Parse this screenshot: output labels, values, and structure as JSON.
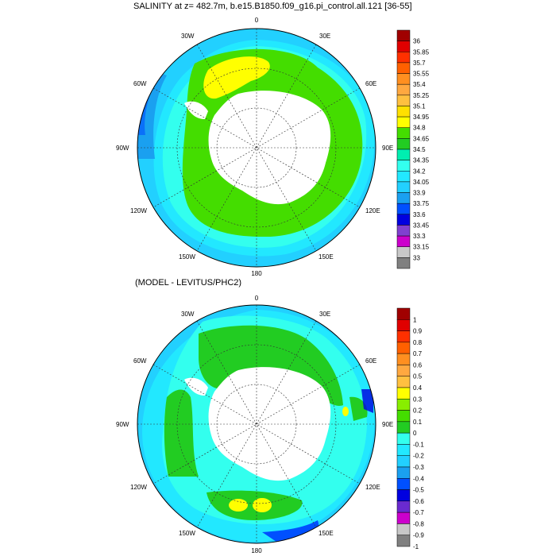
{
  "panels": [
    {
      "title": "SALINITY at z= 482.7m, b.e15.B1850.f09_g16.pi_control.all.121 [36-55]",
      "lon_labels": [
        "0",
        "30E",
        "60E",
        "90E",
        "120E",
        "150E",
        "180",
        "150W",
        "120W",
        "90W",
        "60W",
        "30W"
      ],
      "colorbar": {
        "labels": [
          "36",
          "35.85",
          "35.7",
          "35.55",
          "35.4",
          "35.25",
          "35.1",
          "34.95",
          "34.8",
          "34.65",
          "34.5",
          "34.35",
          "34.2",
          "34.05",
          "33.9",
          "33.75",
          "33.6",
          "33.45",
          "33.3",
          "33.15",
          "33"
        ],
        "colors": [
          "#a00000",
          "#e00000",
          "#ff3000",
          "#ff6000",
          "#ff8f20",
          "#ffa840",
          "#ffc040",
          "#ffe000",
          "#ffff00",
          "#44dd00",
          "#22cc22",
          "#00eeb0",
          "#33ffee",
          "#22e8ff",
          "#22d0ff",
          "#1aa0f0",
          "#0050ff",
          "#0000e0",
          "#8040d0",
          "#cc00cc",
          "#c8c8c8",
          "#808080"
        ]
      }
    },
    {
      "title": "(MODEL - LEVITUS/PHC2)",
      "lon_labels": [
        "0",
        "30E",
        "60E",
        "90E",
        "120E",
        "150E",
        "180",
        "150W",
        "120W",
        "90W",
        "60W",
        "30W"
      ],
      "colorbar": {
        "labels": [
          "1",
          "0.9",
          "0.8",
          "0.7",
          "0.6",
          "0.5",
          "0.4",
          "0.3",
          "0.2",
          "0.1",
          "0",
          "-0.1",
          "-0.2",
          "-0.3",
          "-0.4",
          "-0.5",
          "-0.6",
          "-0.7",
          "-0.8",
          "-0.9",
          "-1"
        ],
        "colors": [
          "#a00000",
          "#e00000",
          "#ff3000",
          "#ff6000",
          "#ff8f20",
          "#ffa840",
          "#ffc040",
          "#ffff00",
          "#88ee00",
          "#44dd00",
          "#22cc22",
          "#33ffee",
          "#22e8ff",
          "#22d0ff",
          "#1aa0f0",
          "#0050ff",
          "#0000e0",
          "#6a2ad0",
          "#cc00cc",
          "#c8c8c8",
          "#808080"
        ]
      }
    }
  ]
}
